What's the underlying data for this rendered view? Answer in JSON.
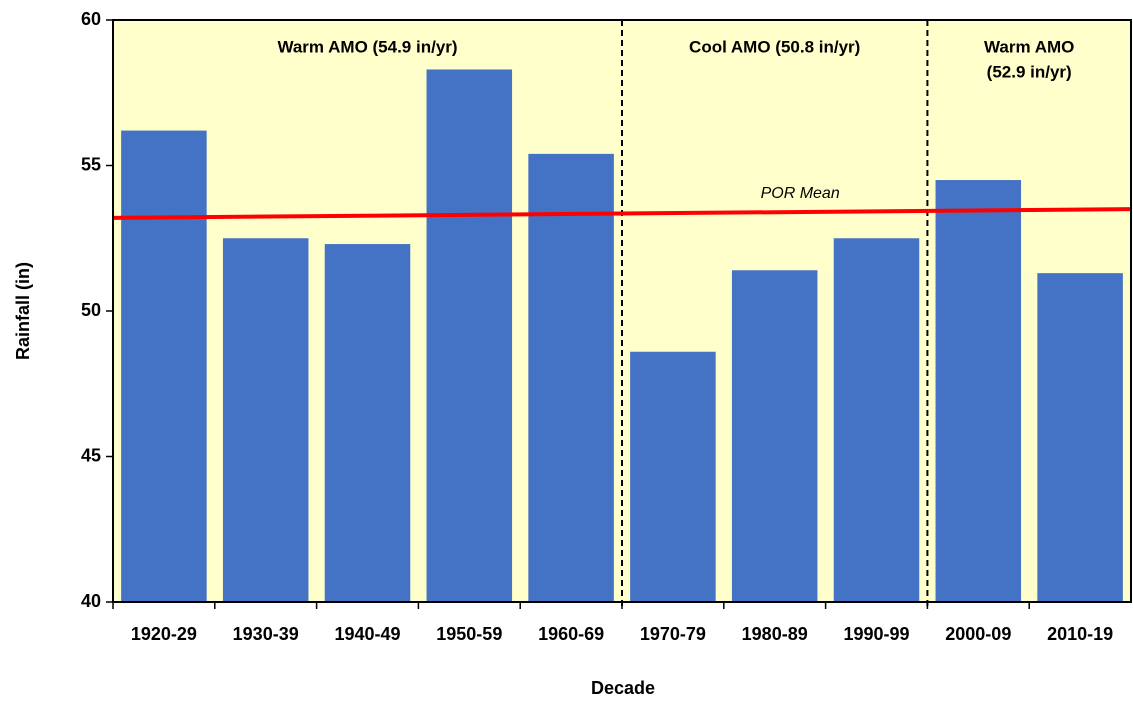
{
  "chart_data": {
    "type": "bar",
    "xlabel": "Decade",
    "ylabel": "Rainfall (in)",
    "categories": [
      "1920-29",
      "1930-39",
      "1940-49",
      "1950-59",
      "1960-69",
      "1970-79",
      "1980-89",
      "1990-99",
      "2000-09",
      "2010-19"
    ],
    "values": [
      56.2,
      52.5,
      52.3,
      58.3,
      55.4,
      48.6,
      51.4,
      52.5,
      54.5,
      51.3
    ],
    "color": "#4472c4",
    "background": "#ffffcc",
    "ylim": [
      40,
      60
    ],
    "yticks": [
      40,
      45,
      50,
      55,
      60
    ],
    "grid": false,
    "reference_line": {
      "label": "POR Mean",
      "start": 53.2,
      "end": 53.5,
      "color": "#ff0000"
    },
    "periods": [
      {
        "lines": [
          "Warm AMO (54.9 in/yr)"
        ],
        "span": 5
      },
      {
        "lines": [
          "Cool AMO (50.8 in/yr)"
        ],
        "span": 3
      },
      {
        "lines": [
          "Warm AMO",
          "(52.9 in/yr)"
        ],
        "span": 2
      }
    ]
  }
}
